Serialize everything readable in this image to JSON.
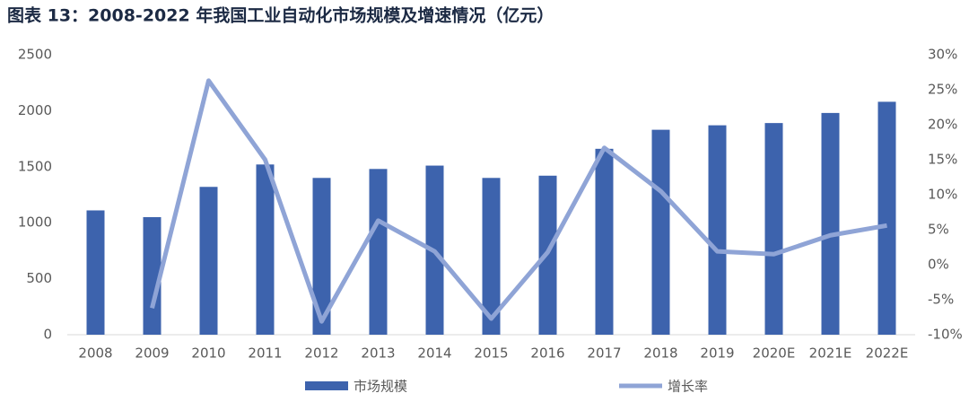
{
  "chart_data": {
    "type": "bar-line",
    "title": "图表 13：2008-2022 年我国工业自动化市场规模及增速情况（亿元）",
    "categories": [
      "2008",
      "2009",
      "2010",
      "2011",
      "2012",
      "2013",
      "2014",
      "2015",
      "2016",
      "2017",
      "2018",
      "2019",
      "2020E",
      "2021E",
      "2022E"
    ],
    "series": [
      {
        "name": "市场规模",
        "type": "bar",
        "color": "#3d63ad",
        "values": [
          1110,
          1050,
          1320,
          1520,
          1400,
          1480,
          1510,
          1400,
          1420,
          1660,
          1830,
          1870,
          1890,
          1980,
          2080
        ]
      },
      {
        "name": "增长率",
        "type": "line",
        "axis": "y2",
        "color": "#8fa4d6",
        "values": [
          null,
          -6.2,
          26.3,
          15.0,
          -8.1,
          6.3,
          1.9,
          -7.7,
          1.8,
          16.7,
          10.5,
          1.9,
          1.5,
          4.2,
          5.6
        ]
      }
    ],
    "ylim": [
      0,
      2500
    ],
    "yticks": [
      0,
      500,
      1000,
      1500,
      2000,
      2500
    ],
    "y2lim": [
      -10,
      30
    ],
    "y2ticks": [
      {
        "value": -10,
        "label": "-10%"
      },
      {
        "value": -5,
        "label": "-5%"
      },
      {
        "value": 0,
        "label": "0%"
      },
      {
        "value": 5,
        "label": "5%"
      },
      {
        "value": 10,
        "label": "10%"
      },
      {
        "value": 15,
        "label": "15%"
      },
      {
        "value": 20,
        "label": "20%"
      },
      {
        "value": 25,
        "label": "25%"
      },
      {
        "value": 30,
        "label": "30%"
      }
    ],
    "grid": false
  }
}
